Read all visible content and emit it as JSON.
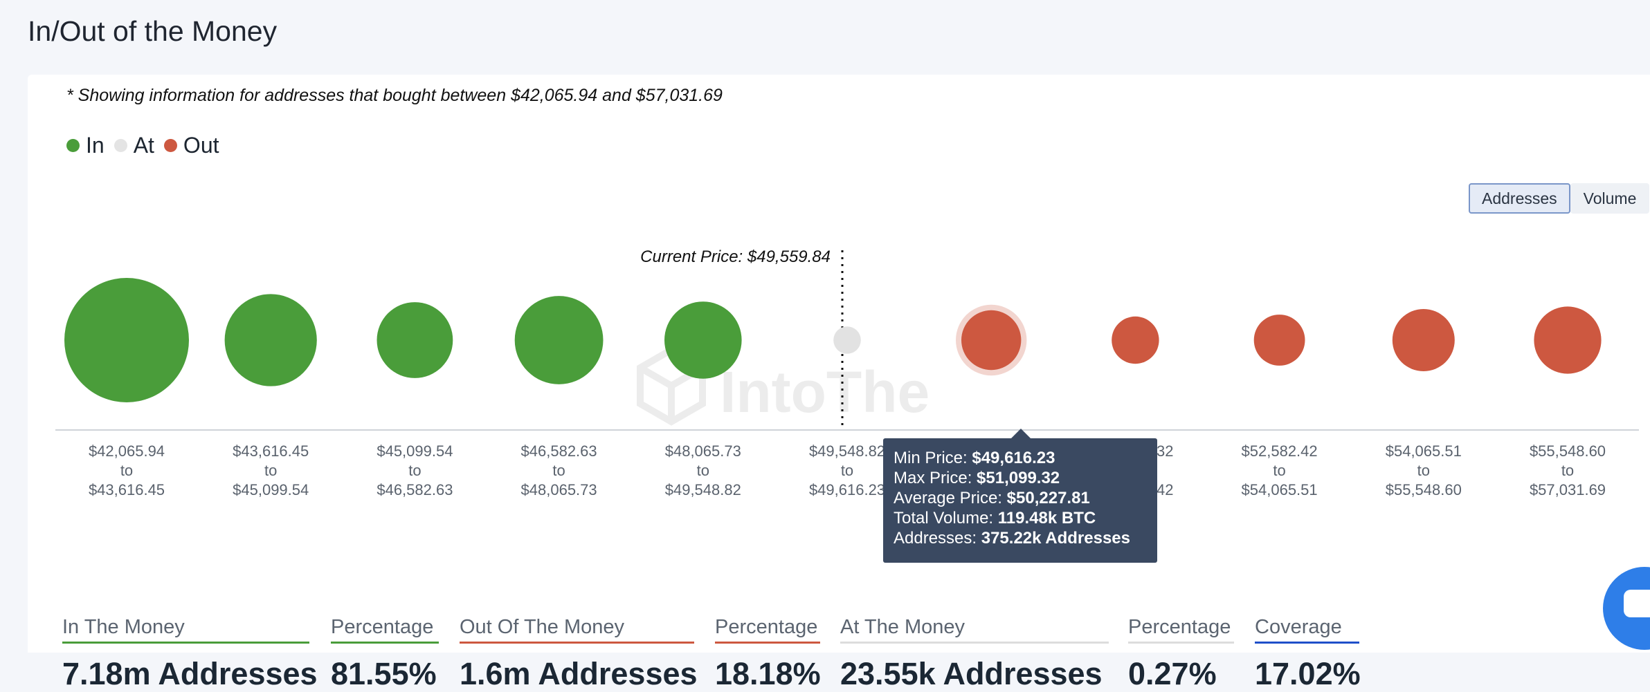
{
  "page": {
    "title": "In/Out of the Money"
  },
  "note": "* Showing information for addresses that bought between $42,065.94 and $57,031.69",
  "legend": [
    {
      "label": "In",
      "color": "#4a9d3a"
    },
    {
      "label": "At",
      "color": "#e4e4e4"
    },
    {
      "label": "Out",
      "color": "#cd5840"
    }
  ],
  "toggle": {
    "addresses": "Addresses",
    "volume": "Volume",
    "selected": "Addresses"
  },
  "current_price_label": "Current Price: $49,559.84",
  "watermark": "IntoThe",
  "tooltip": {
    "min_label": "Min Price:",
    "min_value": "$49,616.23",
    "max_label": "Max Price:",
    "max_value": "$51,099.32",
    "avg_label": "Average Price:",
    "avg_value": "$50,227.81",
    "vol_label": "Total Volume:",
    "vol_value": "119.48k BTC",
    "addr_label": "Addresses:",
    "addr_value": "375.22k Addresses"
  },
  "chart_data": {
    "type": "bubble",
    "note": "Bubble size proportional to number of addresses in each price range; color indicates In/At/Out of the money",
    "current_price": 49559.84,
    "ranges": [
      {
        "from": "$42,065.94",
        "to": "$43,616.45",
        "status": "in",
        "size": 1.0
      },
      {
        "from": "$43,616.45",
        "to": "$45,099.54",
        "status": "in",
        "size": 0.74
      },
      {
        "from": "$45,099.54",
        "to": "$46,582.63",
        "status": "in",
        "size": 0.61
      },
      {
        "from": "$46,582.63",
        "to": "$48,065.73",
        "status": "in",
        "size": 0.71
      },
      {
        "from": "$48,065.73",
        "to": "$49,548.82",
        "status": "in",
        "size": 0.62
      },
      {
        "from": "$49,548.82",
        "to": "$49,616.23",
        "status": "at",
        "size": 0.22
      },
      {
        "from": "$49,616.23",
        "to": "$51,099.32",
        "status": "out",
        "size": 0.48,
        "highlighted": true
      },
      {
        "from": "$51,099.32",
        "to": "$52,582.42",
        "status": "out",
        "size": 0.38
      },
      {
        "from": "$52,582.42",
        "to": "$54,065.51",
        "status": "out",
        "size": 0.41
      },
      {
        "from": "$54,065.51",
        "to": "$55,548.60",
        "status": "out",
        "size": 0.5
      },
      {
        "from": "$55,548.60",
        "to": "$57,031.69",
        "status": "out",
        "size": 0.54
      }
    ],
    "separator_word": "to",
    "colors": {
      "in": "#4a9d3a",
      "at": "#e2e2e2",
      "out": "#cd5840"
    }
  },
  "stats": [
    {
      "label": "In The Money",
      "value": "7.18m Addresses",
      "color": "#4a9d3a"
    },
    {
      "label": "Percentage",
      "value": "81.55%",
      "color": "#4a9d3a"
    },
    {
      "label": "Out Of The Money",
      "value": "1.6m Addresses",
      "color": "#cd5840"
    },
    {
      "label": "Percentage",
      "value": "18.18%",
      "color": "#cd5840"
    },
    {
      "label": "At The Money",
      "value": "23.55k Addresses",
      "color": "#dcdcdc"
    },
    {
      "label": "Percentage",
      "value": "0.27%",
      "color": "#dcdcdc"
    },
    {
      "label": "Coverage",
      "value": "17.02%",
      "color": "#1f4fc9"
    }
  ]
}
